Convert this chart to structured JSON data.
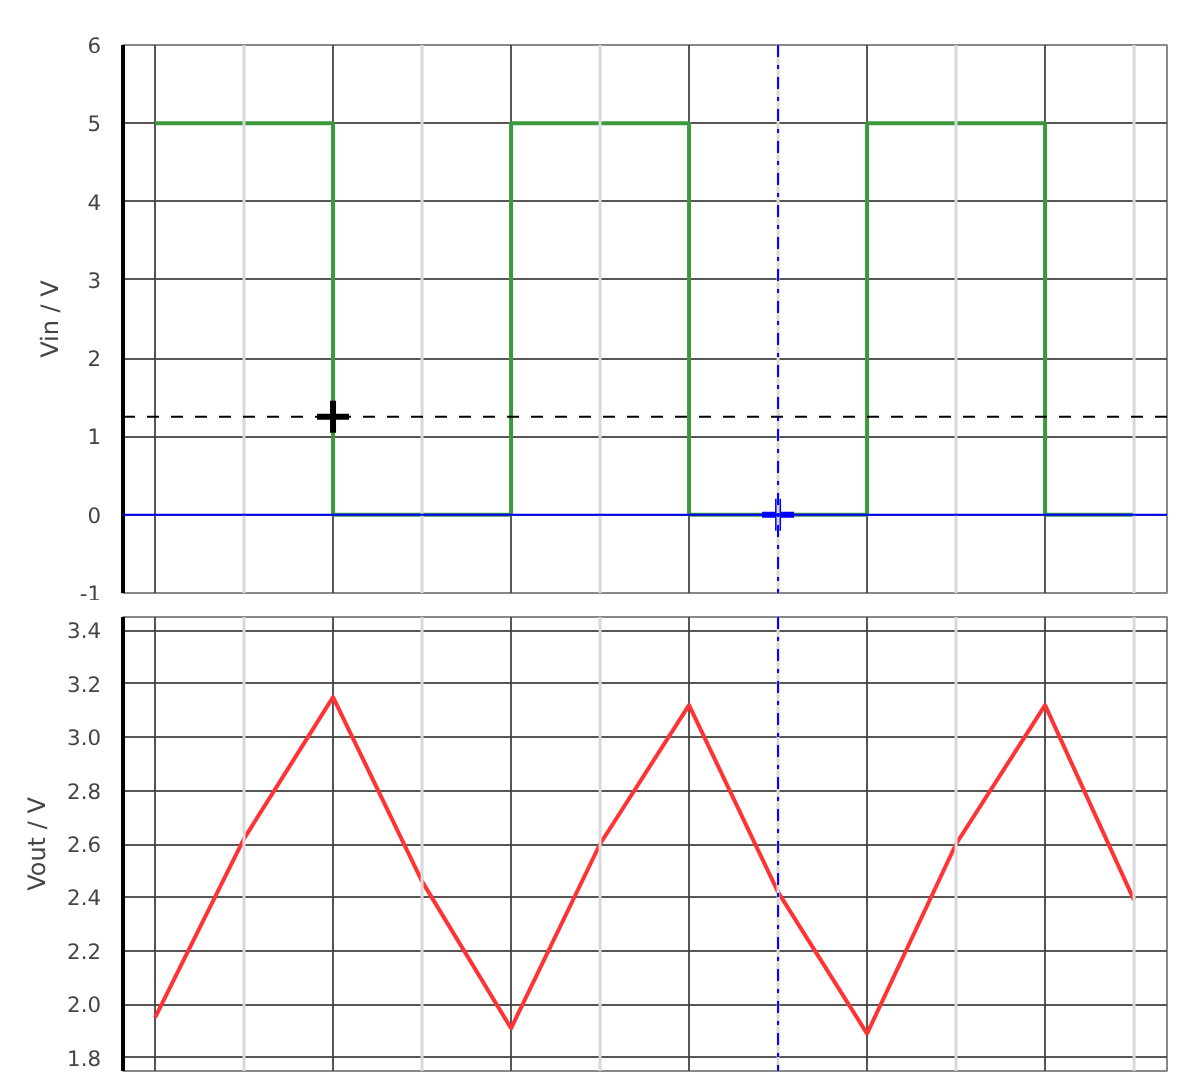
{
  "chart_data": [
    {
      "type": "step",
      "categories": [
        null,
        null,
        null,
        null,
        null,
        null,
        null,
        null,
        null,
        null,
        null,
        null
      ],
      "ylabel": "Vin / V",
      "ylim": [
        -1,
        6
      ],
      "yticks": [
        -1,
        0,
        1,
        2,
        3,
        4,
        5,
        6
      ],
      "grid": true,
      "tick_labels": "y",
      "series": [
        {
          "color": "#3c9a3c",
          "values": [
            5,
            5,
            0,
            0,
            5,
            5,
            0,
            0,
            5,
            5,
            0,
            0
          ]
        },
        {
          "type": "scatter",
          "marker": "cross",
          "color": "#000000",
          "values": [
            null,
            null,
            1.25,
            null,
            null,
            null,
            null,
            null,
            null,
            null,
            null,
            null
          ]
        },
        {
          "type": "scatter",
          "marker": "cross",
          "color": "#0000ff",
          "values": [
            null,
            null,
            null,
            null,
            null,
            null,
            null,
            0,
            null,
            null,
            null,
            null
          ]
        }
      ],
      "ref_lines": [
        {
          "axis": "y",
          "value": 1.25,
          "color": "#000000",
          "line_style": "dashed"
        },
        {
          "axis": "y",
          "value": 0,
          "color": "#0000ff",
          "line_style": "solid"
        }
      ]
    },
    {
      "type": "line",
      "categories": [
        null,
        null,
        null,
        null,
        null,
        null,
        null,
        null,
        null,
        null,
        null,
        null
      ],
      "ylabel": "Vout / V",
      "ylim": [
        1.75,
        3.45
      ],
      "yticks": [
        1.8,
        {
          "value": 2,
          "label": "2.0"
        },
        2.2,
        2.4,
        2.6,
        2.8,
        {
          "value": 3,
          "label": "3.0"
        },
        3.2,
        3.4
      ],
      "grid": true,
      "tick_labels": "y",
      "series": [
        {
          "color": "#ff3333",
          "values": [
            1.95,
            2.62,
            3.15,
            2.46,
            1.91,
            2.6,
            3.12,
            2.42,
            1.89,
            2.6,
            3.12,
            2.39
          ]
        }
      ]
    }
  ]
}
